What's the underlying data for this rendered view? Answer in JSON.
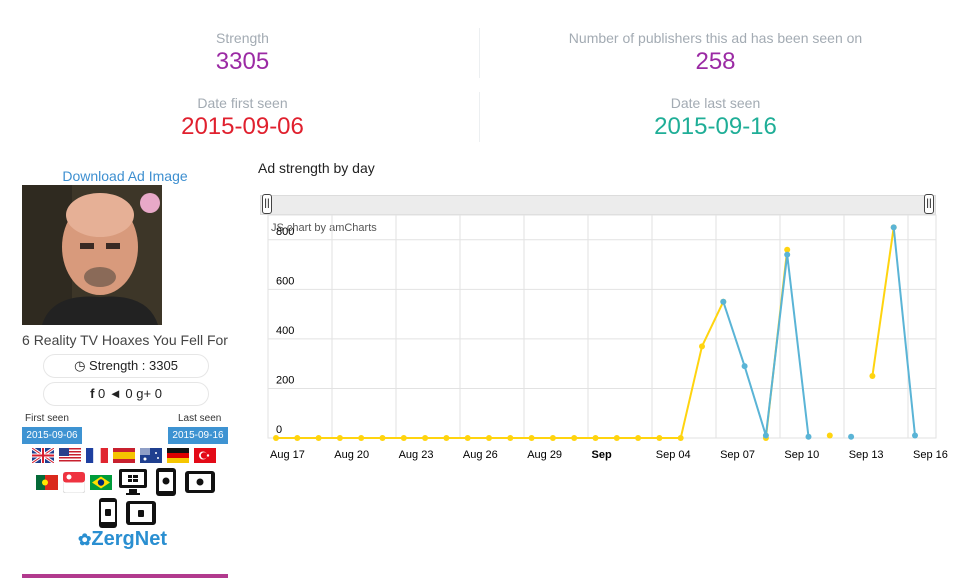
{
  "stats": {
    "strength_label": "Strength",
    "strength_value": "3305",
    "publishers_label": "Number of publishers this ad has been seen on",
    "publishers_value": "258",
    "first_label": "Date first seen",
    "first_value": "2015-09-06",
    "last_label": "Date last seen",
    "last_value": "2015-09-16"
  },
  "ad": {
    "download_label": "Download Ad Image",
    "title": "6 Reality TV Hoaxes You Fell For",
    "strength_pill": "Strength : 3305",
    "facebook_count": "0",
    "twitter_count": "0",
    "gplus_count": "0",
    "first_seen_label": "First seen",
    "first_seen_date": "2015-09-06",
    "last_seen_label": "Last seen",
    "last_seen_date": "2015-09-16",
    "countries": [
      "gb-flag-icon",
      "us-flag-icon",
      "fr-flag-icon",
      "es-flag-icon",
      "au-flag-icon",
      "de-flag-icon",
      "tr-flag-icon",
      "pt-flag-icon",
      "sg-flag-icon",
      "br-flag-icon"
    ],
    "devices": [
      "windows-desktop-icon",
      "apple-tablet-icon",
      "apple-tablet-landscape-icon",
      "android-phone-icon",
      "android-tablet-icon"
    ],
    "network_logo": "ZergNet"
  },
  "chart_title": "Ad strength by day",
  "chart_credit": "JS chart by amCharts",
  "chart_data": {
    "type": "line",
    "ylim": [
      0,
      900
    ],
    "yticks": [
      0,
      200,
      400,
      600,
      800
    ],
    "x_tick_labels": [
      "Aug 17",
      "Aug 20",
      "Aug 23",
      "Aug 26",
      "Aug 29",
      "Sep",
      "Sep 04",
      "Sep 07",
      "Sep 10",
      "Sep 13",
      "Sep 16"
    ],
    "x": [
      "Aug 17",
      "Aug 18",
      "Aug 19",
      "Aug 20",
      "Aug 21",
      "Aug 22",
      "Aug 23",
      "Aug 24",
      "Aug 25",
      "Aug 26",
      "Aug 27",
      "Aug 28",
      "Aug 29",
      "Aug 30",
      "Aug 31",
      "Sep 01",
      "Sep 02",
      "Sep 03",
      "Sep 04",
      "Sep 05",
      "Sep 06",
      "Sep 07",
      "Sep 08",
      "Sep 09",
      "Sep 10",
      "Sep 11",
      "Sep 12",
      "Sep 13",
      "Sep 14",
      "Sep 15",
      "Sep 16"
    ],
    "series": [
      {
        "color": "#ffd40f",
        "values": [
          0,
          0,
          0,
          0,
          0,
          0,
          0,
          0,
          0,
          0,
          0,
          0,
          0,
          0,
          0,
          0,
          0,
          0,
          0,
          0,
          370,
          550,
          null,
          0,
          760,
          null,
          10,
          null,
          250,
          850,
          null
        ]
      },
      {
        "color": "#5ab4d6",
        "values": [
          null,
          null,
          null,
          null,
          null,
          null,
          null,
          null,
          null,
          null,
          null,
          null,
          null,
          null,
          null,
          null,
          null,
          null,
          null,
          null,
          null,
          550,
          290,
          10,
          740,
          5,
          null,
          5,
          null,
          850,
          10
        ]
      }
    ]
  }
}
